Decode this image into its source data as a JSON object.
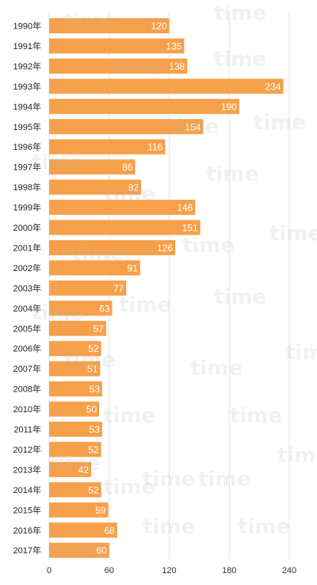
{
  "chart_data": {
    "type": "bar",
    "orientation": "horizontal",
    "categories": [
      "1990年",
      "1991年",
      "1992年",
      "1993年",
      "1994年",
      "1995年",
      "1996年",
      "1997年",
      "1998年",
      "1999年",
      "2000年",
      "2001年",
      "2002年",
      "2003年",
      "2004年",
      "2005年",
      "2006年",
      "2007年",
      "2008年",
      "2010年",
      "2011年",
      "2012年",
      "2013年",
      "2014年",
      "2015年",
      "2016年",
      "2017年"
    ],
    "values": [
      120,
      135,
      138,
      234,
      190,
      154,
      116,
      86,
      92,
      146,
      151,
      126,
      91,
      77,
      63,
      57,
      52,
      51,
      53,
      50,
      53,
      52,
      42,
      52,
      59,
      68,
      60
    ],
    "xlim": [
      0,
      240
    ],
    "xticks": [
      "0",
      "60",
      "120",
      "180",
      "240"
    ],
    "grid": true,
    "bar_color": "#f7a04a",
    "label_color": "#ffffff"
  },
  "watermark": {
    "text": "time",
    "color": "#c8c8c8"
  }
}
